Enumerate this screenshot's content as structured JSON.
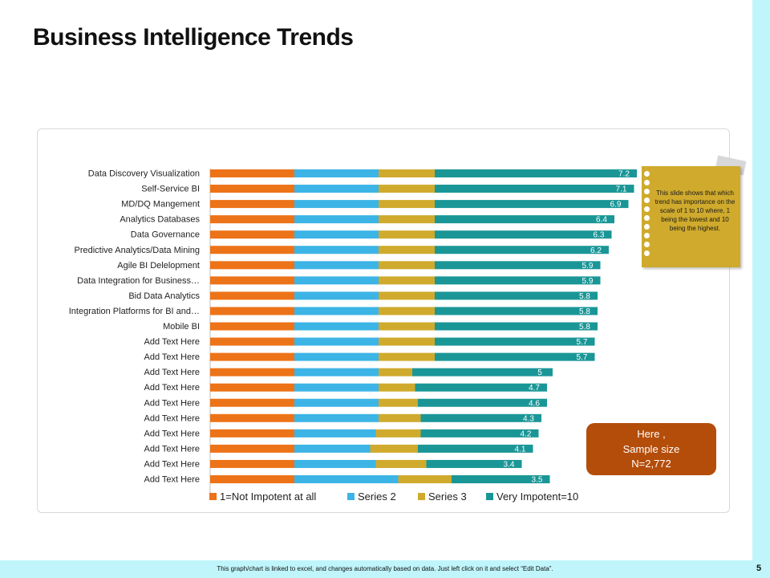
{
  "page": {
    "title": "Business Intelligence Trends",
    "footer_note": "This graph/chart is linked to excel, and changes automatically based on data. Just left click on it and select “Edit Data”.",
    "page_number": "5"
  },
  "sticky_note": {
    "text": "This slide shows that which trend has importance on the scale of 1 to 10 where, 1 being the lowest and 10 being the highest."
  },
  "sample_box": {
    "line1": "Here ,",
    "line2": "Sample size",
    "line3": "N=2,772"
  },
  "colors": {
    "series1": "#ed7318",
    "series2": "#3cb4e6",
    "series3": "#cfaa2c",
    "series4": "#1a9697",
    "sticky": "#cfaa2c",
    "sample_box": "#b44d0a",
    "accent_strip": "#bff5fb"
  },
  "chart_data": {
    "type": "bar",
    "orientation": "horizontal",
    "stacked": true,
    "title": "",
    "xlabel": "",
    "ylabel": "",
    "xlim": [
      0,
      16
    ],
    "legend_position": "bottom",
    "categories": [
      "Data Discovery Visualization",
      "Self-Service BI",
      "MD/DQ Mangement",
      "Analytics Databases",
      "Data Governance",
      "Predictive Analytics/Data Mining",
      "Agile BI Delelopment",
      "Data Integration for Business…",
      "Bid Data Analytics",
      "Integration Platforms for BI and…",
      "Mobile BI",
      "Add Text Here",
      "Add Text Here",
      "Add Text Here",
      "Add Text Here",
      "Add Text Here",
      "Add Text Here",
      "Add Text Here",
      "Add Text Here",
      "Add Text Here",
      "Add Text Here"
    ],
    "series": [
      {
        "name": "1=Not Impotent at all",
        "values": [
          3,
          3,
          3,
          3,
          3,
          3,
          3,
          3,
          3,
          3,
          3,
          3,
          3,
          3,
          3,
          3,
          3,
          3,
          3,
          3,
          3
        ]
      },
      {
        "name": "Series 2",
        "values": [
          3,
          3,
          3,
          3,
          3,
          3,
          3,
          3,
          3,
          3,
          3,
          3,
          3,
          3,
          3,
          3,
          3,
          2.9,
          2.7,
          2.9,
          3.7
        ]
      },
      {
        "name": "Series 3",
        "values": [
          2,
          2,
          2,
          2,
          2,
          2,
          2,
          2,
          2,
          2,
          2,
          2,
          2,
          1.2,
          1.3,
          1.4,
          1.5,
          1.6,
          1.7,
          1.8,
          1.9
        ]
      },
      {
        "name": "Very Impotent=10",
        "values": [
          7.2,
          7.1,
          6.9,
          6.4,
          6.3,
          6.2,
          5.9,
          5.9,
          5.8,
          5.8,
          5.8,
          5.7,
          5.7,
          5,
          4.7,
          4.6,
          4.3,
          4.2,
          4.1,
          3.4,
          3.5
        ]
      }
    ]
  }
}
